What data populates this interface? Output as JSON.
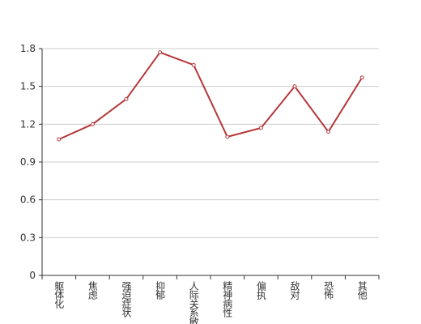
{
  "chart_data": {
    "type": "line",
    "categories": [
      "躯体化",
      "焦虑",
      "强迫症状",
      "抑郁",
      "人际关系敏感",
      "精神病性",
      "偏执",
      "敌对",
      "恐怖",
      "其他"
    ],
    "series": [
      {
        "color": "#b5373a",
        "values": [
          1.08,
          1.2,
          1.4,
          1.77,
          1.67,
          1.1,
          1.17,
          1.5,
          1.14,
          1.57
        ]
      }
    ],
    "ylim": [
      0,
      1.8
    ],
    "yticks": [
      0,
      0.3,
      0.6,
      0.9,
      1.2,
      1.5,
      1.8
    ],
    "grid": true
  }
}
